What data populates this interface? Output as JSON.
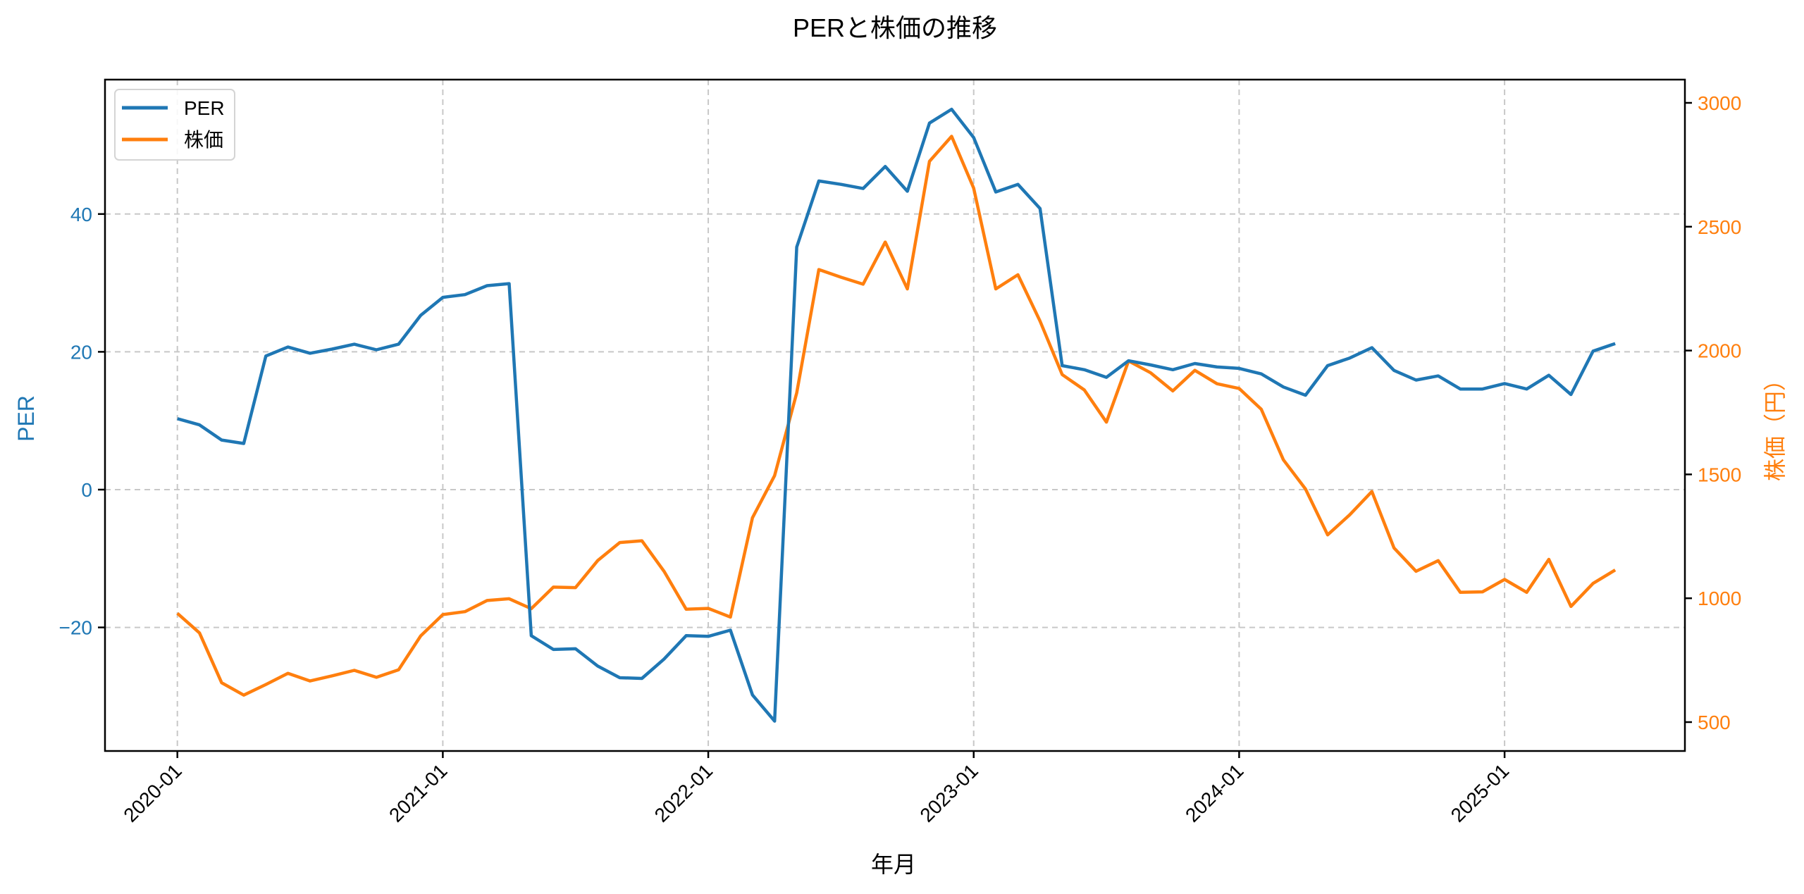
{
  "chart_data": {
    "type": "line",
    "title": "PERと株価の推移",
    "xlabel": "年月",
    "ylabel_left": "PER",
    "ylabel_right": "株価（円）",
    "x_tick_labels": [
      "2020-01",
      "2021-01",
      "2022-01",
      "2023-01",
      "2024-01",
      "2025-01"
    ],
    "y_left_ticks": [
      40,
      20,
      0,
      -20
    ],
    "y_left_tick_labels": [
      "40",
      "20",
      "0",
      "−20"
    ],
    "y_right_ticks": [
      3000,
      2500,
      2000,
      1500,
      1000,
      500
    ],
    "y_right_tick_labels": [
      "3000",
      "2500",
      "2000",
      "1500",
      "1000",
      "500"
    ],
    "ylim_left": [
      -38.1,
      59.4
    ],
    "ylim_right": [
      390,
      3095
    ],
    "grid": true,
    "legend_position": "upper left",
    "x": [
      "2020-01",
      "2020-02",
      "2020-03",
      "2020-04",
      "2020-05",
      "2020-06",
      "2020-07",
      "2020-08",
      "2020-09",
      "2020-10",
      "2020-11",
      "2020-12",
      "2021-01",
      "2021-02",
      "2021-03",
      "2021-04",
      "2021-05",
      "2021-06",
      "2021-07",
      "2021-08",
      "2021-09",
      "2021-10",
      "2021-11",
      "2021-12",
      "2022-01",
      "2022-02",
      "2022-03",
      "2022-04",
      "2022-05",
      "2022-06",
      "2022-07",
      "2022-08",
      "2022-09",
      "2022-10",
      "2022-11",
      "2022-12",
      "2023-01",
      "2023-02",
      "2023-03",
      "2023-04",
      "2023-05",
      "2023-06",
      "2023-07",
      "2023-08",
      "2023-09",
      "2023-10",
      "2023-11",
      "2023-12",
      "2024-01",
      "2024-02",
      "2024-03",
      "2024-04",
      "2024-05",
      "2024-06",
      "2024-07",
      "2024-08",
      "2024-09",
      "2024-10",
      "2024-11",
      "2024-12",
      "2025-01",
      "2025-02",
      "2025-03",
      "2025-04",
      "2025-05",
      "2025-06"
    ],
    "series": [
      {
        "name": "PER",
        "axis": "left",
        "color": "#1f77b4",
        "values": [
          10.3,
          9.4,
          7.2,
          6.7,
          19.4,
          20.7,
          19.8,
          20.4,
          21.1,
          20.3,
          21.1,
          25.3,
          27.9,
          28.3,
          29.6,
          29.9,
          -21.2,
          -23.2,
          -23.1,
          -25.6,
          -27.3,
          -27.4,
          -24.6,
          -21.2,
          -21.3,
          -20.4,
          -29.8,
          -33.6,
          35.2,
          44.8,
          44.3,
          43.7,
          46.9,
          43.3,
          53.2,
          55.2,
          51.1,
          43.2,
          44.3,
          40.8,
          18.0,
          17.4,
          16.3,
          18.7,
          18.1,
          17.4,
          18.3,
          17.8,
          17.6,
          16.8,
          14.9,
          13.7,
          18.0,
          19.1,
          20.6,
          17.3,
          15.9,
          16.5,
          14.6,
          14.6,
          15.4,
          14.6,
          16.6,
          13.8,
          20.1,
          21.2
        ]
      },
      {
        "name": "株価",
        "axis": "right",
        "color": "#ff7f0e",
        "values": [
          939,
          860,
          659,
          609,
          652,
          697,
          666,
          687,
          709,
          681,
          711,
          848,
          934,
          946,
          991,
          998,
          958,
          1045,
          1043,
          1152,
          1225,
          1232,
          1109,
          956,
          959,
          924,
          1325,
          1495,
          1829,
          2327,
          2296,
          2268,
          2438,
          2249,
          2764,
          2865,
          2656,
          2249,
          2306,
          2119,
          1903,
          1841,
          1711,
          1958,
          1910,
          1837,
          1920,
          1866,
          1847,
          1763,
          1559,
          1441,
          1256,
          1337,
          1431,
          1203,
          1109,
          1152,
          1024,
          1026,
          1076,
          1024,
          1157,
          967,
          1060,
          1114
        ]
      }
    ]
  },
  "legend": {
    "items": [
      {
        "label": "PER",
        "color": "#1f77b4"
      },
      {
        "label": "株価",
        "color": "#ff7f0e"
      }
    ]
  },
  "colors": {
    "per": "#1f77b4",
    "price": "#ff7f0e",
    "grid": "#c8c8c8"
  }
}
